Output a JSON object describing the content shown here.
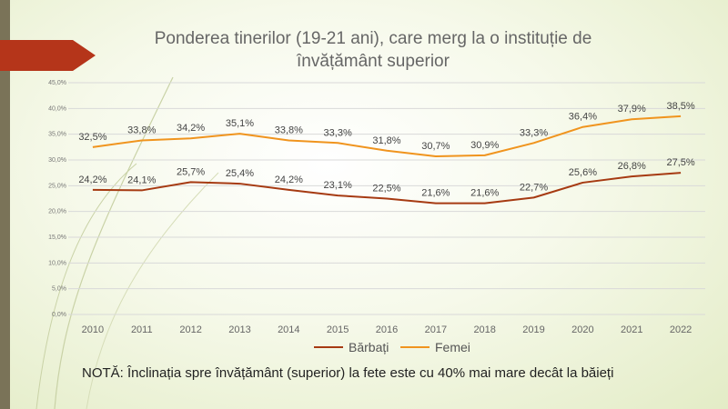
{
  "chart_data": {
    "type": "line",
    "title": "Ponderea tinerilor (19-21 ani), care merg la o instituție de învățământ superior",
    "title_lines": [
      "Ponderea tinerilor (19-21 ani), care merg la o instituție de",
      "învățământ superior"
    ],
    "categories": [
      "2010",
      "2011",
      "2012",
      "2013",
      "2014",
      "2015",
      "2016",
      "2017",
      "2018",
      "2019",
      "2020",
      "2021",
      "2022"
    ],
    "series": [
      {
        "name": "Bărbați",
        "color": "#a63a12",
        "values": [
          24.2,
          24.1,
          25.7,
          25.4,
          24.2,
          23.1,
          22.5,
          21.6,
          21.6,
          22.7,
          25.6,
          26.8,
          27.5
        ],
        "labels": [
          "24,2%",
          "24,1%",
          "25,7%",
          "25,4%",
          "24,2%",
          "23,1%",
          "22,5%",
          "21,6%",
          "21,6%",
          "22,7%",
          "25,6%",
          "26,8%",
          "27,5%"
        ]
      },
      {
        "name": "Femei",
        "color": "#f0941e",
        "values": [
          32.5,
          33.8,
          34.2,
          35.1,
          33.8,
          33.3,
          31.8,
          30.7,
          30.9,
          33.3,
          36.4,
          37.9,
          38.5
        ],
        "labels": [
          "32,5%",
          "33,8%",
          "34,2%",
          "35,1%",
          "33,8%",
          "33,3%",
          "31,8%",
          "30,7%",
          "30,9%",
          "33,3%",
          "36,4%",
          "37,9%",
          "38,5%"
        ]
      }
    ],
    "ylim": [
      0,
      45
    ],
    "yticks": [
      "0,0%",
      "5,0%",
      "10,0%",
      "15,0%",
      "20,0%",
      "25,0%",
      "30,0%",
      "35,0%",
      "40,0%",
      "45,0%"
    ],
    "grid": true,
    "legend_position": "bottom"
  },
  "note": "NOTĂ: Înclinația spre învățământ (superior) la fete este cu 40% mai mare decât la băieți",
  "colors": {
    "title": "#666666",
    "grid": "#d9d9d9",
    "accent_bar": "#7a7358",
    "arrow": "#b5351a"
  }
}
